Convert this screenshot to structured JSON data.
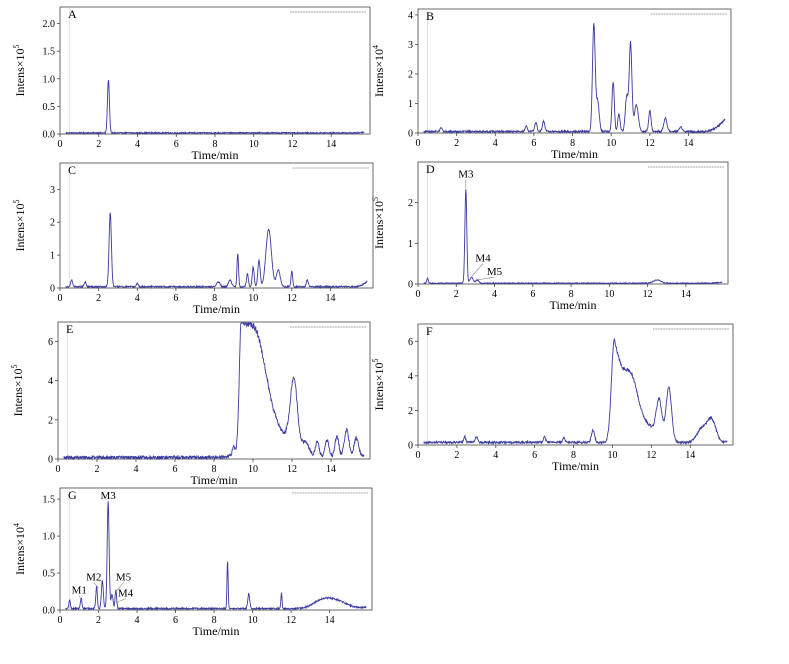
{
  "figure": {
    "x_label": "Time/min",
    "colors": {
      "trace": "#3a3aa0",
      "axis": "#444444",
      "grid": "#cfcfcf"
    }
  },
  "chart_data": [
    {
      "panel": "A",
      "type": "line",
      "ylabel": "Intens×10",
      "ylabel_exp": "5",
      "xlim": [
        0,
        16
      ],
      "ylim": [
        0,
        2.3
      ],
      "xticks": [
        0,
        2,
        4,
        6,
        8,
        10,
        12,
        14
      ],
      "yticks": [
        0.0,
        0.5,
        1.0,
        1.5,
        2.0
      ],
      "ytick_labels": [
        "0.0",
        "0.5",
        "1.0",
        "1.5",
        "2.0"
      ],
      "baseline": 0.02,
      "noise": 0.01,
      "tail": [
        15.2,
        16,
        0.04
      ],
      "peaks": [
        [
          2.5,
          0.97,
          0.05
        ]
      ],
      "annotations": []
    },
    {
      "panel": "B",
      "type": "line",
      "ylabel": "Intens×10",
      "ylabel_exp": "4",
      "xlim": [
        0,
        16.2
      ],
      "ylim": [
        0,
        4.2
      ],
      "xticks": [
        0,
        2,
        4,
        6,
        8,
        10,
        12,
        14
      ],
      "yticks": [
        0,
        1,
        2,
        3,
        4
      ],
      "ytick_labels": [
        "0",
        "1",
        "2",
        "3",
        "4"
      ],
      "baseline": 0.05,
      "noise": 0.03,
      "tail": [
        14.8,
        16.0,
        0.5
      ],
      "peaks": [
        [
          1.2,
          0.15,
          0.05
        ],
        [
          5.6,
          0.2,
          0.05
        ],
        [
          6.1,
          0.3,
          0.06
        ],
        [
          6.5,
          0.35,
          0.06
        ],
        [
          9.1,
          3.6,
          0.07
        ],
        [
          9.3,
          1.0,
          0.08
        ],
        [
          10.1,
          1.7,
          0.06
        ],
        [
          10.4,
          0.6,
          0.06
        ],
        [
          10.8,
          1.2,
          0.07
        ],
        [
          11.0,
          3.0,
          0.07
        ],
        [
          11.3,
          0.9,
          0.1
        ],
        [
          12.0,
          0.7,
          0.06
        ],
        [
          12.8,
          0.45,
          0.08
        ],
        [
          13.6,
          0.15,
          0.08
        ]
      ],
      "annotations": []
    },
    {
      "panel": "C",
      "type": "line",
      "ylabel": "Intens×10",
      "ylabel_exp": "5",
      "xlim": [
        0,
        16.2
      ],
      "ylim": [
        0,
        3.8
      ],
      "xticks": [
        0,
        2,
        4,
        6,
        8,
        10,
        12,
        14
      ],
      "yticks": [
        0,
        1,
        2,
        3
      ],
      "ytick_labels": [
        "0",
        "1",
        "2",
        "3"
      ],
      "baseline": 0.04,
      "noise": 0.02,
      "tail": [
        15.3,
        16.1,
        0.3
      ],
      "peaks": [
        [
          0.6,
          0.2,
          0.05
        ],
        [
          1.3,
          0.15,
          0.05
        ],
        [
          2.6,
          2.25,
          0.06
        ],
        [
          4.0,
          0.1,
          0.05
        ],
        [
          8.2,
          0.15,
          0.08
        ],
        [
          8.8,
          0.2,
          0.08
        ],
        [
          9.2,
          1.0,
          0.04
        ],
        [
          9.7,
          0.4,
          0.05
        ],
        [
          10.0,
          0.6,
          0.05
        ],
        [
          10.3,
          0.8,
          0.06
        ],
        [
          10.8,
          1.75,
          0.14
        ],
        [
          11.3,
          0.5,
          0.1
        ],
        [
          12.0,
          0.5,
          0.04
        ],
        [
          12.8,
          0.2,
          0.05
        ]
      ],
      "annotations": []
    },
    {
      "panel": "D",
      "type": "line",
      "ylabel": "Intens×10",
      "ylabel_exp": "5",
      "xlim": [
        0,
        16.2
      ],
      "ylim": [
        0,
        3.0
      ],
      "xticks": [
        0,
        2,
        4,
        6,
        8,
        10,
        12,
        14
      ],
      "yticks": [
        0,
        1,
        2
      ],
      "ytick_labels": [
        "0",
        "1",
        "2"
      ],
      "baseline": 0.02,
      "noise": 0.01,
      "tail": [
        15,
        16,
        0.03
      ],
      "peaks": [
        [
          0.5,
          0.12,
          0.04
        ],
        [
          2.5,
          2.3,
          0.05
        ],
        [
          2.8,
          0.15,
          0.08
        ],
        [
          3.1,
          0.08,
          0.08
        ],
        [
          12.5,
          0.08,
          0.2
        ]
      ],
      "annotations": [
        {
          "label": "M3",
          "x": 2.5,
          "y": 2.35,
          "tx": 2.5,
          "ty": 2.62
        },
        {
          "label": "M4",
          "x": 2.8,
          "y": 0.18,
          "tx": 3.4,
          "ty": 0.55
        },
        {
          "label": "M5",
          "x": 3.1,
          "y": 0.1,
          "tx": 4.0,
          "ty": 0.22
        }
      ]
    },
    {
      "panel": "E",
      "type": "line",
      "ylabel": "Intens×10",
      "ylabel_exp": "5",
      "xlim": [
        0,
        16
      ],
      "ylim": [
        0,
        7
      ],
      "xticks": [
        0,
        2,
        4,
        6,
        8,
        10,
        12,
        14
      ],
      "yticks": [
        0,
        2,
        4,
        6
      ],
      "ytick_labels": [
        "0",
        "2",
        "4",
        "6"
      ],
      "baseline": 0.08,
      "noise": 0.08,
      "tail": [
        15.5,
        15.9,
        0.4
      ],
      "peaks": [
        [
          9.0,
          0.4,
          0.06
        ],
        [
          9.4,
          6.3,
          0.1,
          1.3
        ],
        [
          10.2,
          3.0,
          0.5
        ],
        [
          12.1,
          3.5,
          0.18
        ],
        [
          12.7,
          0.7,
          0.2
        ],
        [
          13.3,
          0.8,
          0.1
        ],
        [
          13.8,
          0.9,
          0.1
        ],
        [
          14.3,
          1.1,
          0.1
        ],
        [
          14.8,
          1.4,
          0.12
        ],
        [
          15.3,
          1.0,
          0.12
        ]
      ],
      "annotations": []
    },
    {
      "panel": "F",
      "type": "line",
      "ylabel": "Intens×10",
      "ylabel_exp": "5",
      "xlim": [
        0,
        16.2
      ],
      "ylim": [
        0,
        7
      ],
      "xticks": [
        0,
        2,
        4,
        6,
        8,
        10,
        12,
        14
      ],
      "yticks": [
        0,
        2,
        4,
        6
      ],
      "ytick_labels": [
        "0",
        "2",
        "4",
        "6"
      ],
      "baseline": 0.15,
      "noise": 0.06,
      "tail": [
        15.6,
        16.0,
        0.1
      ],
      "peaks": [
        [
          2.4,
          0.35,
          0.05
        ],
        [
          3.0,
          0.35,
          0.06
        ],
        [
          6.5,
          0.3,
          0.06
        ],
        [
          7.5,
          0.3,
          0.06
        ],
        [
          9.0,
          0.7,
          0.08
        ],
        [
          10.1,
          6.0,
          0.15,
          1.0
        ],
        [
          11.0,
          1.5,
          0.3
        ],
        [
          12.4,
          2.3,
          0.15
        ],
        [
          12.9,
          3.2,
          0.14
        ],
        [
          14.6,
          0.8,
          0.25
        ],
        [
          15.1,
          1.3,
          0.22
        ]
      ],
      "annotations": []
    },
    {
      "panel": "G",
      "type": "line",
      "ylabel": "Intens×10",
      "ylabel_exp": "4",
      "xlim": [
        0,
        16.2
      ],
      "ylim": [
        0,
        1.65
      ],
      "xticks": [
        0,
        2,
        4,
        6,
        8,
        10,
        12,
        14
      ],
      "yticks": [
        0.0,
        0.5,
        1.0,
        1.5
      ],
      "ytick_labels": [
        "0.0",
        "0.5",
        "1.0",
        "1.5"
      ],
      "baseline": 0.02,
      "noise": 0.01,
      "tail": [
        15,
        16,
        0.02
      ],
      "peaks": [
        [
          0.5,
          0.12,
          0.04
        ],
        [
          1.1,
          0.14,
          0.04
        ],
        [
          1.9,
          0.3,
          0.04
        ],
        [
          2.2,
          0.38,
          0.05
        ],
        [
          2.5,
          1.45,
          0.05
        ],
        [
          2.7,
          0.2,
          0.05
        ],
        [
          2.9,
          0.25,
          0.04
        ],
        [
          8.7,
          0.65,
          0.03
        ],
        [
          9.8,
          0.2,
          0.05
        ],
        [
          11.5,
          0.22,
          0.03
        ],
        [
          13.5,
          0.06,
          0.4
        ],
        [
          14.2,
          0.12,
          0.6
        ]
      ],
      "annotations": [
        {
          "label": "M1",
          "x": 1.1,
          "y": 0.14,
          "tx": 1.0,
          "ty": 0.22
        },
        {
          "label": "M2",
          "x": 2.0,
          "y": 0.3,
          "tx": 1.75,
          "ty": 0.4
        },
        {
          "label": "M3",
          "x": 2.5,
          "y": 1.45,
          "tx": 2.5,
          "ty": 1.5
        },
        {
          "label": "M5",
          "x": 2.9,
          "y": 0.25,
          "tx": 3.3,
          "ty": 0.4
        },
        {
          "label": "M4",
          "x": 2.9,
          "y": 0.1,
          "tx": 3.4,
          "ty": 0.18
        }
      ]
    }
  ]
}
